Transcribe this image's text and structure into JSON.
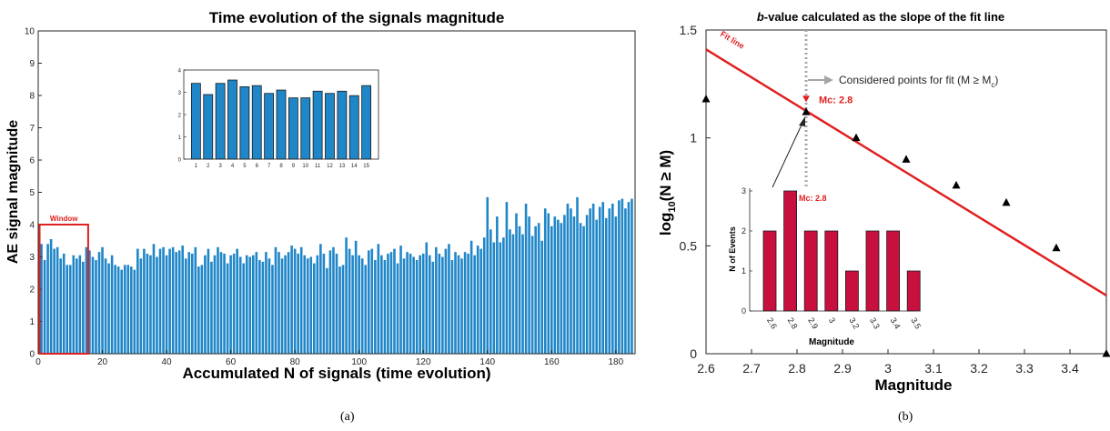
{
  "captions": {
    "a": "(a)",
    "b": "(b)"
  },
  "colors": {
    "bar": "#1f86c8",
    "red": "#e02020",
    "crimson": "#c8103e",
    "gray": "#a6a6a6"
  },
  "chart_data": [
    {
      "id": "a",
      "type": "bar",
      "title": "Time evolution of the signals magnitude",
      "xlabel": "Accumulated N of signals (time evolution)",
      "ylabel": "AE signal magnitude",
      "xlim": [
        0,
        186
      ],
      "ylim": [
        0,
        10
      ],
      "xticks": [
        "0",
        "20",
        "40",
        "60",
        "80",
        "100",
        "120",
        "140",
        "160",
        "180"
      ],
      "yticks": [
        "0",
        "1",
        "2",
        "3",
        "4",
        "5",
        "6",
        "7",
        "8",
        "9",
        "10"
      ],
      "window_label": "Window",
      "window_range": [
        1,
        15
      ],
      "window_top": 4.0,
      "values": [
        3.4,
        2.9,
        3.4,
        3.55,
        3.25,
        3.3,
        2.95,
        3.1,
        2.75,
        2.75,
        3.05,
        2.95,
        3.05,
        2.85,
        3.3,
        3.2,
        3.0,
        2.9,
        3.15,
        3.3,
        2.95,
        2.8,
        3.05,
        2.75,
        2.7,
        2.6,
        2.75,
        2.75,
        2.7,
        2.6,
        3.25,
        2.95,
        3.25,
        3.1,
        3.05,
        3.4,
        3.0,
        3.25,
        3.3,
        3.05,
        3.25,
        3.3,
        3.15,
        3.2,
        3.35,
        2.95,
        3.15,
        3.1,
        3.3,
        2.7,
        2.75,
        3.05,
        3.25,
        2.85,
        3.05,
        3.3,
        3.15,
        3.1,
        2.8,
        3.05,
        3.1,
        3.25,
        3.0,
        2.8,
        3.05,
        3.0,
        3.05,
        3.15,
        2.9,
        2.85,
        3.15,
        2.95,
        2.75,
        3.3,
        3.15,
        2.95,
        3.05,
        3.15,
        3.35,
        3.25,
        3.1,
        3.3,
        3.05,
        2.95,
        3.0,
        2.8,
        3.05,
        3.4,
        3.1,
        2.65,
        3.2,
        3.3,
        3.1,
        2.7,
        2.75,
        3.6,
        3.25,
        3.05,
        3.5,
        3.05,
        2.95,
        2.75,
        3.2,
        3.25,
        2.9,
        3.4,
        3.05,
        2.9,
        3.1,
        3.15,
        3.25,
        2.8,
        3.35,
        2.95,
        3.15,
        3.1,
        3.0,
        2.9,
        3.05,
        3.1,
        3.45,
        3.05,
        2.85,
        3.3,
        3.1,
        3.0,
        3.25,
        3.4,
        2.9,
        3.15,
        3.05,
        2.95,
        3.15,
        3.1,
        3.5,
        3.05,
        3.35,
        3.25,
        3.6,
        4.85,
        3.85,
        3.45,
        4.25,
        3.45,
        3.6,
        4.7,
        3.85,
        3.7,
        4.35,
        3.95,
        3.7,
        4.65,
        4.25,
        3.65,
        3.95,
        4.05,
        3.5,
        4.5,
        4.35,
        3.95,
        4.25,
        4.15,
        4.05,
        4.3,
        4.65,
        4.5,
        4.25,
        4.85,
        4.05,
        3.95,
        4.3,
        4.5,
        4.65,
        4.15,
        4.55,
        4.7,
        4.2,
        4.5,
        4.65,
        4.25,
        4.75,
        4.8,
        4.5,
        4.7,
        4.8
      ],
      "inset": {
        "categories": [
          "1",
          "2",
          "3",
          "4",
          "5",
          "6",
          "7",
          "8",
          "9",
          "10",
          "11",
          "12",
          "13",
          "14",
          "15"
        ],
        "values": [
          3.4,
          2.9,
          3.4,
          3.55,
          3.25,
          3.3,
          2.95,
          3.1,
          2.75,
          2.75,
          3.05,
          2.95,
          3.05,
          2.85,
          3.3
        ],
        "ylim": [
          0,
          4
        ],
        "yticks": [
          "0",
          "1",
          "2",
          "3",
          "4"
        ]
      }
    },
    {
      "id": "b",
      "type": "scatter",
      "title_italic": "b",
      "title_rest": "-value calculated as the slope of the fit line",
      "xlabel": "Magnitude",
      "ylabel_main": "log",
      "ylabel_sub": "10",
      "ylabel_rest": "(N ≥ M)",
      "xlim": [
        2.6,
        3.48
      ],
      "ylim": [
        0,
        1.5
      ],
      "xticks": [
        "2.6",
        "2.7",
        "2.8",
        "2.9",
        "3",
        "3.1",
        "3.2",
        "3.3",
        "3.4"
      ],
      "yticks": [
        "0",
        "0.5",
        "1",
        "1.5"
      ],
      "points": [
        [
          2.6,
          1.18
        ],
        [
          2.82,
          1.12
        ],
        [
          2.93,
          1.0
        ],
        [
          3.04,
          0.9
        ],
        [
          3.15,
          0.78
        ],
        [
          3.26,
          0.7
        ],
        [
          3.37,
          0.49
        ],
        [
          3.48,
          0.0
        ]
      ],
      "fit_line": {
        "label": "Fit line",
        "from": [
          2.6,
          1.41
        ],
        "to": [
          3.48,
          0.27
        ]
      },
      "mc_label": "Mc: 2.8",
      "mc_value": 2.82,
      "considered_label": "Considered points for fit (M ≥ M",
      "considered_sub": "c",
      "considered_close": ")",
      "inset": {
        "categories": [
          "2.6",
          "2.8",
          "2.9",
          "3",
          "3.2",
          "3.3",
          "3.4",
          "3.5"
        ],
        "values": [
          2,
          3,
          2,
          2,
          1,
          2,
          2,
          1
        ],
        "ylim": [
          0,
          3
        ],
        "yticks": [
          "0",
          "1",
          "2",
          "3"
        ],
        "xlabel": "Magnitude",
        "ylabel": "N of Events",
        "mc_label": "Mc: 2.8"
      }
    }
  ]
}
